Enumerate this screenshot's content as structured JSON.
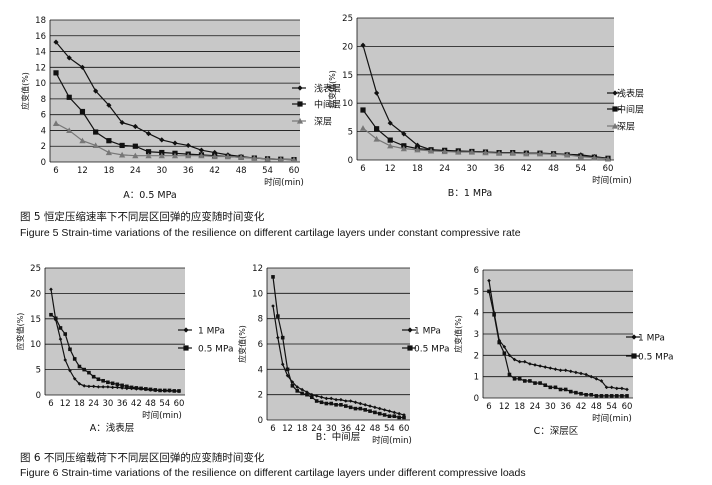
{
  "figures": [
    {
      "caption_cn": "图 5   恒定压缩速率下不同层区回弹的应变随时间变化",
      "caption_en": "Figure 5    Strain-time variations of the resilience on different cartilage layers under constant compressive rate"
    },
    {
      "caption_cn": "图 6    不同压缩载荷下不同层区回弹的应变随时间变化",
      "caption_en": "Figure 6    Strain-time variations of the resilience on different cartilage layers under different compressive loads"
    }
  ],
  "chart_data": [
    {
      "id": "fig5A",
      "type": "line",
      "subtitle": "A：0.5 MPa",
      "xlabel": "时间(min)",
      "ylabel": "应变值(%)",
      "x": [
        6,
        9,
        12,
        15,
        18,
        21,
        24,
        27,
        30,
        33,
        36,
        39,
        42,
        45,
        48,
        51,
        54,
        57,
        60
      ],
      "xticks": [
        6,
        12,
        18,
        24,
        30,
        36,
        42,
        48,
        54,
        60
      ],
      "ylim": [
        0,
        18
      ],
      "yticks": [
        0,
        2,
        4,
        6,
        8,
        10,
        12,
        14,
        16,
        18
      ],
      "legend_position": "right",
      "series": [
        {
          "name": "浅表层",
          "marker": "diamond",
          "values": [
            15.2,
            13.2,
            12.0,
            9.0,
            7.2,
            5.0,
            4.5,
            3.6,
            2.8,
            2.4,
            2.1,
            1.5,
            1.2,
            0.9,
            0.7,
            0.5,
            0.4,
            0.35,
            0.3
          ]
        },
        {
          "name": "中间层",
          "marker": "square",
          "values": [
            11.3,
            8.2,
            6.4,
            3.8,
            2.7,
            2.1,
            2.0,
            1.3,
            1.2,
            1.1,
            1.0,
            0.9,
            0.8,
            0.7,
            0.6,
            0.5,
            0.4,
            0.35,
            0.3
          ]
        },
        {
          "name": "深层",
          "marker": "triangle",
          "values": [
            4.9,
            4.0,
            2.7,
            2.1,
            1.2,
            0.9,
            0.8,
            0.8,
            0.8,
            0.8,
            0.8,
            0.8,
            0.7,
            0.7,
            0.6,
            0.5,
            0.4,
            0.35,
            0.3
          ]
        }
      ]
    },
    {
      "id": "fig5B",
      "type": "line",
      "subtitle": "B：1 MPa",
      "xlabel": "时间(min)",
      "ylabel": "应变值(%)",
      "x": [
        6,
        9,
        12,
        15,
        18,
        21,
        24,
        27,
        30,
        33,
        36,
        39,
        42,
        45,
        48,
        51,
        54,
        57,
        60
      ],
      "xticks": [
        6,
        12,
        18,
        24,
        30,
        36,
        42,
        48,
        54,
        60
      ],
      "ylim": [
        0,
        25
      ],
      "yticks": [
        0,
        5,
        10,
        15,
        20,
        25
      ],
      "legend_position": "right",
      "series": [
        {
          "name": "浅表层",
          "marker": "diamond",
          "values": [
            20.2,
            11.8,
            6.5,
            4.6,
            2.6,
            1.8,
            1.6,
            1.5,
            1.5,
            1.4,
            1.3,
            1.3,
            1.2,
            1.2,
            1.1,
            1.0,
            0.9,
            0.6,
            0.3
          ]
        },
        {
          "name": "中间层",
          "marker": "square",
          "values": [
            8.8,
            5.5,
            3.5,
            2.5,
            2.0,
            1.8,
            1.7,
            1.6,
            1.5,
            1.4,
            1.3,
            1.3,
            1.2,
            1.2,
            1.1,
            0.9,
            0.7,
            0.5,
            0.3
          ]
        },
        {
          "name": "深层",
          "marker": "triangle",
          "values": [
            5.6,
            3.7,
            2.5,
            2.0,
            1.8,
            1.6,
            1.5,
            1.4,
            1.4,
            1.3,
            1.2,
            1.2,
            1.1,
            1.1,
            1.0,
            0.9,
            0.6,
            0.4,
            0.2
          ]
        }
      ]
    },
    {
      "id": "fig6A",
      "type": "line",
      "subtitle": "A：浅表层",
      "xlabel": "时间(min)",
      "ylabel": "应变值(%)",
      "x": [
        6,
        8,
        10,
        12,
        14,
        16,
        18,
        20,
        22,
        24,
        26,
        28,
        30,
        32,
        34,
        36,
        38,
        40,
        42,
        44,
        46,
        48,
        50,
        52,
        54,
        56,
        58,
        60
      ],
      "xticks": [
        6,
        12,
        18,
        24,
        30,
        36,
        42,
        48,
        54,
        60
      ],
      "ylim": [
        0,
        25
      ],
      "yticks": [
        0,
        5,
        10,
        15,
        20,
        25
      ],
      "legend_position": "right",
      "series": [
        {
          "name": "1 MPa",
          "marker": "diamond",
          "values": [
            20.8,
            14.8,
            11.0,
            6.9,
            4.8,
            3.2,
            2.2,
            1.8,
            1.7,
            1.7,
            1.6,
            1.6,
            1.6,
            1.5,
            1.5,
            1.4,
            1.3,
            1.3,
            1.2,
            1.2,
            1.1,
            1.0,
            0.9,
            0.9,
            0.8,
            0.8,
            0.8,
            0.7
          ]
        },
        {
          "name": "0.5 MPa",
          "marker": "square",
          "values": [
            15.8,
            15.1,
            13.2,
            12.0,
            9.0,
            7.1,
            5.6,
            5.0,
            4.4,
            3.6,
            3.1,
            2.8,
            2.5,
            2.3,
            2.1,
            1.9,
            1.7,
            1.5,
            1.4,
            1.3,
            1.2,
            1.1,
            1.0,
            0.9,
            0.9,
            0.9,
            0.8,
            0.8
          ]
        }
      ]
    },
    {
      "id": "fig6B",
      "type": "line",
      "subtitle": "B：中间层",
      "xlabel": "时间(min)",
      "ylabel": "应变值(%)",
      "x": [
        6,
        8,
        10,
        12,
        14,
        16,
        18,
        20,
        22,
        24,
        26,
        28,
        30,
        32,
        34,
        36,
        38,
        40,
        42,
        44,
        46,
        48,
        50,
        52,
        54,
        56,
        58,
        60
      ],
      "xticks": [
        6,
        12,
        18,
        24,
        30,
        36,
        42,
        48,
        54,
        60
      ],
      "ylim": [
        0,
        12
      ],
      "yticks": [
        0,
        2,
        4,
        6,
        8,
        10,
        12
      ],
      "legend_position": "right",
      "series": [
        {
          "name": "1 MPa",
          "marker": "diamond",
          "values": [
            9.0,
            6.5,
            4.4,
            3.5,
            3.0,
            2.6,
            2.4,
            2.2,
            2.0,
            1.9,
            1.8,
            1.7,
            1.7,
            1.6,
            1.6,
            1.5,
            1.5,
            1.4,
            1.3,
            1.2,
            1.1,
            1.0,
            0.9,
            0.8,
            0.7,
            0.6,
            0.5,
            0.4
          ]
        },
        {
          "name": "0.5 MPa",
          "marker": "square",
          "values": [
            11.3,
            8.2,
            6.5,
            4.0,
            2.7,
            2.3,
            2.1,
            2.0,
            1.8,
            1.5,
            1.4,
            1.3,
            1.3,
            1.2,
            1.2,
            1.1,
            1.0,
            0.9,
            0.9,
            0.8,
            0.7,
            0.6,
            0.5,
            0.4,
            0.3,
            0.3,
            0.2,
            0.2
          ]
        }
      ]
    },
    {
      "id": "fig6C",
      "type": "line",
      "subtitle": "C：深层区",
      "xlabel": "时间(min)",
      "ylabel": "应变值(%)",
      "x": [
        6,
        8,
        10,
        12,
        14,
        16,
        18,
        20,
        22,
        24,
        26,
        28,
        30,
        32,
        34,
        36,
        38,
        40,
        42,
        44,
        46,
        48,
        50,
        52,
        54,
        56,
        58,
        60
      ],
      "xticks": [
        6,
        12,
        18,
        24,
        30,
        36,
        42,
        48,
        54,
        60
      ],
      "ylim": [
        0,
        6
      ],
      "yticks": [
        0,
        1,
        2,
        3,
        4,
        5,
        6
      ],
      "legend_position": "right",
      "series": [
        {
          "name": "1 MPa",
          "marker": "diamond",
          "values": [
            5.5,
            4.0,
            2.7,
            2.4,
            2.0,
            1.8,
            1.7,
            1.7,
            1.6,
            1.55,
            1.5,
            1.45,
            1.4,
            1.35,
            1.3,
            1.3,
            1.25,
            1.2,
            1.15,
            1.1,
            1.0,
            0.9,
            0.8,
            0.5,
            0.5,
            0.45,
            0.45,
            0.4
          ]
        },
        {
          "name": "0.5 MPa",
          "marker": "square",
          "values": [
            5.0,
            3.9,
            2.6,
            2.1,
            1.1,
            0.9,
            0.9,
            0.8,
            0.8,
            0.7,
            0.7,
            0.6,
            0.5,
            0.5,
            0.4,
            0.4,
            0.3,
            0.25,
            0.2,
            0.15,
            0.15,
            0.1,
            0.1,
            0.1,
            0.1,
            0.1,
            0.1,
            0.1
          ]
        }
      ]
    }
  ]
}
